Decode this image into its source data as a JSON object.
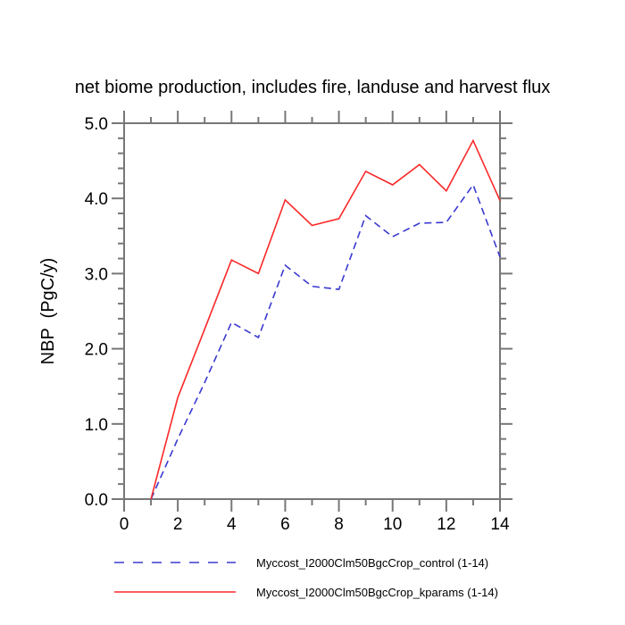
{
  "figure": {
    "title": "net biome production, includes fire, landuse and harvest flux",
    "background_color": "#ffffff",
    "axis_color": "#777777",
    "text_color": "#000000"
  },
  "chart_data": {
    "type": "line",
    "title": "net biome production, includes fire, landuse and harvest flux",
    "xlabel": "",
    "ylabel": "NBP  (PgC/y)",
    "xlim": [
      0,
      14
    ],
    "ylim": [
      0.0,
      5.0
    ],
    "xticks": [
      0,
      2,
      4,
      6,
      8,
      10,
      12,
      14
    ],
    "xtick_labels": [
      "0",
      "2",
      "4",
      "6",
      "8",
      "10",
      "12",
      "14"
    ],
    "x_minor_interval": 1,
    "yticks": [
      0.0,
      1.0,
      2.0,
      3.0,
      4.0,
      5.0
    ],
    "ytick_labels": [
      "0.0",
      "1.0",
      "2.0",
      "3.0",
      "4.0",
      "5.0"
    ],
    "y_minor_interval": 0.2,
    "grid": false,
    "legend_position": "bottom",
    "x": [
      1,
      2,
      3,
      4,
      5,
      6,
      7,
      8,
      9,
      10,
      11,
      12,
      13,
      14
    ],
    "series": [
      {
        "name": "Myccost_I2000Clm50BgcCrop_control (1-14)",
        "color": "#3a3ad0",
        "style": "dashed",
        "dash": "8 5",
        "values": [
          0.0,
          0.8,
          1.55,
          2.35,
          2.15,
          3.11,
          2.83,
          2.79,
          3.77,
          3.49,
          3.67,
          3.68,
          4.18,
          3.22
        ]
      },
      {
        "name": "Myccost_I2000Clm50BgcCrop_kparams (1-14)",
        "color": "#fa2828",
        "style": "solid",
        "dash": "",
        "values": [
          0.0,
          1.35,
          2.26,
          3.18,
          3.0,
          3.98,
          3.64,
          3.73,
          4.36,
          4.18,
          4.45,
          4.1,
          4.77,
          3.97
        ]
      }
    ]
  },
  "legend": {
    "entries": [
      {
        "label": "Myccost_I2000Clm50BgcCrop_control (1-14)",
        "color": "#3a3ad0",
        "dash": "11 10"
      },
      {
        "label": "Myccost_I2000Clm50BgcCrop_kparams (1-14)",
        "color": "#fa2828",
        "dash": ""
      }
    ]
  }
}
